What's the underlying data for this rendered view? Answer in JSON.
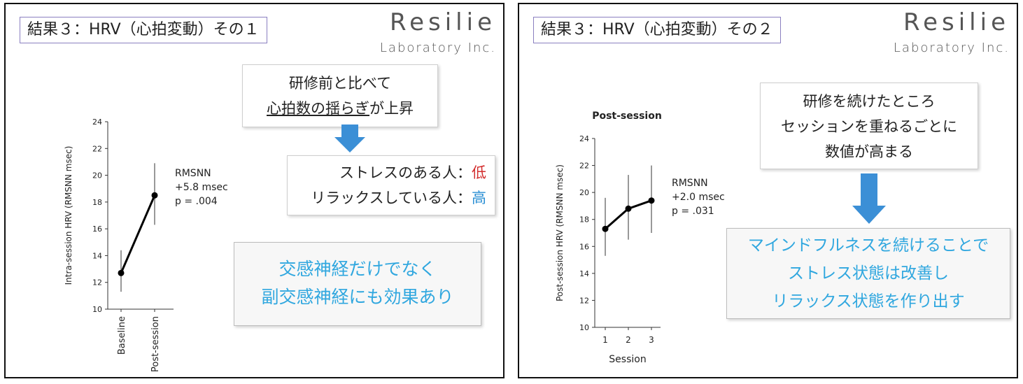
{
  "slide1": {
    "title": "結果３：HRV（心拍変動）その１",
    "logo": {
      "main": "Resilie",
      "sub": "Laboratory Inc."
    },
    "top_box": {
      "line1": "研修前と比べて",
      "line2_underlined": "心拍数の揺らぎ",
      "line2_rest": "が上昇"
    },
    "effect_box": {
      "line1_text": "ストレスのある人：",
      "line1_value": "低",
      "line2_text": "リラックスしている人：",
      "line2_value": "高"
    },
    "conclusion": {
      "line1": "交感神経だけでなく",
      "line2": "副交感神経にも効果あり"
    },
    "annotation": {
      "line1": "RMSNN",
      "line2": "+5.8 msec",
      "line3": "p = .004"
    }
  },
  "slide2": {
    "title": "結果３：HRV（心拍変動）その２",
    "logo": {
      "main": "Resilie",
      "sub": "Laboratory Inc."
    },
    "top_box": {
      "line1": "研修を続けたところ",
      "line2": "セッションを重ねるごとに",
      "line3": "数値が高まる"
    },
    "conclusion": {
      "line1": "マインドフルネスを続けることで",
      "line2": "ストレス状態は改善し",
      "line3": "リラックス状態を作り出す"
    },
    "annotation": {
      "line1": "RMSNN",
      "line2": "+2.0 msec",
      "line3": "p = .031"
    }
  },
  "colors": {
    "accent_blue": "#30a7df",
    "arrow_blue": "#3b8fd6",
    "low_red": "#d32d2d",
    "high_blue": "#2a8fd4",
    "title_border": "#8a7fc0"
  },
  "chart_data": [
    {
      "type": "line",
      "title": "",
      "xlabel": "",
      "ylabel": "Intra-session HRV (RMSNN msec)",
      "categories": [
        "Baseline",
        "Post-session"
      ],
      "values": [
        12.7,
        18.5
      ],
      "error_low": [
        11.3,
        16.3
      ],
      "error_high": [
        14.4,
        20.9
      ],
      "ylim": [
        10,
        24
      ],
      "yticks": [
        10,
        12,
        14,
        16,
        18,
        20,
        22,
        24
      ],
      "grid": false
    },
    {
      "type": "line",
      "title": "Post-session",
      "xlabel": "Session",
      "ylabel": "Post-session HRV (RMSNN msec)",
      "categories": [
        "1",
        "2",
        "3"
      ],
      "values": [
        17.3,
        18.8,
        19.4
      ],
      "error_low": [
        15.3,
        16.5,
        17.0
      ],
      "error_high": [
        19.6,
        21.3,
        22.0
      ],
      "ylim": [
        10,
        24
      ],
      "yticks": [
        10,
        12,
        14,
        16,
        18,
        20,
        22,
        24
      ],
      "grid": false
    }
  ]
}
